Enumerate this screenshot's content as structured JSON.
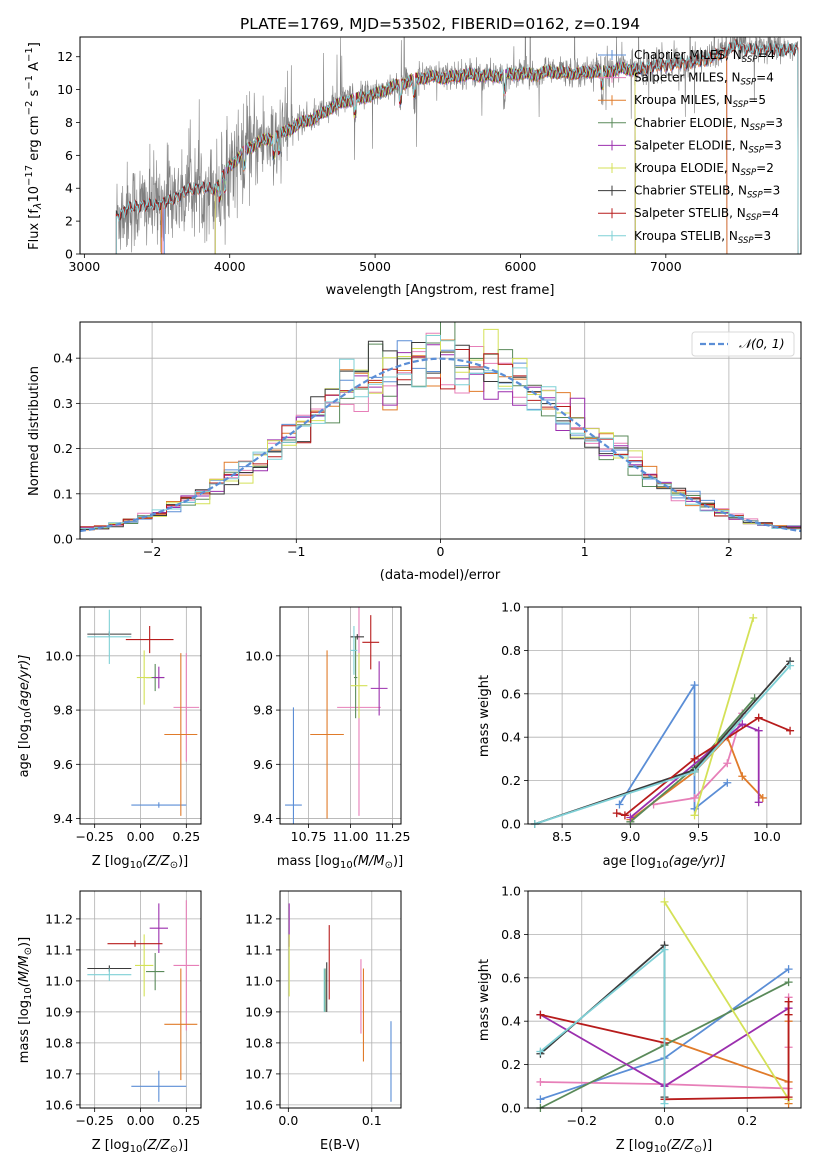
{
  "figure_title": "PLATE=1769, MJD=53502, FIBERID=0162, z=0.194",
  "colors": {
    "chabrier_miles": "#5b8ed6",
    "salpeter_miles": "#e77fb8",
    "kroupa_miles": "#e07b2a",
    "chabrier_elodie": "#5a8a5a",
    "salpeter_elodie": "#9b2fae",
    "kroupa_elodie": "#d4e157",
    "chabrier_stelib": "#3a3a3a",
    "salpeter_stelib": "#b71c1c",
    "kroupa_stelib": "#7fd0d6",
    "observed": "#808080",
    "gaussian": "#5b8ed6"
  },
  "chart_data": [
    {
      "id": "spectrum",
      "type": "line",
      "title": "PLATE=1769, MJD=53502, FIBERID=0162, z=0.194",
      "xlabel": "wavelength [Angstrom, rest frame]",
      "ylabel_parts": {
        "a": "Flux [f",
        "b": "λ",
        "c": "10",
        "d": "−17",
        "e": " erg cm",
        "f": "−2",
        "g": " s",
        "h": "−1",
        "i": " A",
        "j": "−1",
        "k": "]"
      },
      "xlim": [
        2970,
        7930
      ],
      "ylim": [
        0,
        13.2
      ],
      "xticks": [
        3000,
        4000,
        5000,
        6000,
        7000
      ],
      "yticks": [
        0,
        2,
        4,
        6,
        8,
        10,
        12
      ],
      "legend_position": "right",
      "continuum": {
        "x": [
          3220,
          3300,
          3400,
          3500,
          3600,
          3700,
          3800,
          3900,
          4000,
          4100,
          4200,
          4300,
          4400,
          4500,
          4600,
          4700,
          4800,
          4900,
          5000,
          5100,
          5200,
          5300,
          5400,
          5500,
          5600,
          5700,
          5800,
          5900,
          6000,
          6100,
          6200,
          6300,
          6400,
          6500,
          6600,
          6700,
          6800,
          6900,
          7000,
          7100,
          7200,
          7300,
          7400,
          7500,
          7550
        ],
        "y": [
          2.3,
          2.8,
          3.0,
          3.0,
          3.3,
          3.9,
          4.1,
          4.0,
          5.4,
          6.3,
          6.9,
          7.1,
          7.6,
          8.1,
          8.4,
          9.0,
          9.4,
          9.6,
          9.8,
          10.2,
          10.5,
          10.8,
          10.9,
          10.8,
          11.0,
          11.0,
          10.9,
          11.0,
          11.1,
          11.0,
          11.2,
          11.1,
          11.1,
          11.2,
          11.2,
          11.4,
          11.3,
          11.5,
          11.6,
          11.7,
          11.8,
          12.0,
          12.4,
          12.8,
          12.5
        ]
      },
      "series": [
        {
          "name": "Chabrier MILES, N",
          "n_ssp": "=4",
          "color_key": "chabrier_miles",
          "x_start": 3550,
          "x_end": 7420
        },
        {
          "name": "Salpeter MILES, N",
          "n_ssp": "=4",
          "color_key": "salpeter_miles",
          "x_start": 3540,
          "x_end": 7420
        },
        {
          "name": "Kroupa MILES, N",
          "n_ssp": "=5",
          "color_key": "kroupa_miles",
          "x_start": 3530,
          "x_end": 7420
        },
        {
          "name": "Chabrier ELODIE, N",
          "n_ssp": "=3",
          "color_key": "chabrier_elodie",
          "x_start": 3900,
          "x_end": 6790
        },
        {
          "name": "Salpeter ELODIE, N",
          "n_ssp": "=3",
          "color_key": "salpeter_elodie",
          "x_start": 3900,
          "x_end": 6790
        },
        {
          "name": "Kroupa ELODIE, N",
          "n_ssp": "=2",
          "color_key": "kroupa_elodie",
          "x_start": 3900,
          "x_end": 6790
        },
        {
          "name": "Chabrier STELIB, N",
          "n_ssp": "=3",
          "color_key": "chabrier_stelib",
          "x_start": 3220,
          "x_end": 7910
        },
        {
          "name": "Salpeter STELIB, N",
          "n_ssp": "=4",
          "color_key": "salpeter_stelib",
          "x_start": 3220,
          "x_end": 7910
        },
        {
          "name": "Kroupa STELIB, N",
          "n_ssp": "=3",
          "color_key": "kroupa_stelib",
          "x_start": 3220,
          "x_end": 7910
        }
      ],
      "ssp_sub": "SSP"
    },
    {
      "id": "residuals",
      "type": "histogram",
      "xlabel": "(data-model)/error",
      "ylabel": "Normed distribution",
      "xlim": [
        -2.5,
        2.5
      ],
      "ylim": [
        0,
        0.48
      ],
      "xticks": [
        -2,
        -1,
        0,
        1,
        2
      ],
      "yticks": [
        0.0,
        0.1,
        0.2,
        0.3,
        0.4
      ],
      "grid": true,
      "bin_width": 0.1,
      "legend_label": "𝒩(0, 1)",
      "legend_position": "top-right"
    },
    {
      "id": "z_age",
      "type": "errorbar",
      "xlabel_parts": {
        "a": "Z [log",
        "b": "10",
        "c": "(Z/Z",
        "d": "⊙",
        "e": ")]"
      },
      "ylabel_parts": {
        "a": "age  [log",
        "b": "10",
        "c": "(age/yr)]"
      },
      "xlim": [
        -0.33,
        0.33
      ],
      "ylim": [
        9.38,
        10.18
      ],
      "xticks": [
        -0.25,
        0.0,
        0.25
      ],
      "yticks": [
        9.4,
        9.6,
        9.8,
        10.0
      ],
      "grid": true,
      "points": [
        {
          "color_key": "chabrier_miles",
          "x": 0.1,
          "xerr": 0.15,
          "y": 9.45,
          "yerr": 0.01
        },
        {
          "color_key": "salpeter_miles",
          "x": 0.25,
          "xerr": 0.07,
          "y": 9.81,
          "yerr": 0.2
        },
        {
          "color_key": "kroupa_miles",
          "x": 0.22,
          "xerr": 0.09,
          "y": 9.71,
          "yerr": 0.3
        },
        {
          "color_key": "chabrier_elodie",
          "x": 0.08,
          "xerr": 0.05,
          "y": 9.92,
          "yerr": 0.05
        },
        {
          "color_key": "salpeter_elodie",
          "x": 0.1,
          "xerr": 0.03,
          "y": 9.92,
          "yerr": 0.04
        },
        {
          "color_key": "kroupa_elodie",
          "x": 0.02,
          "xerr": 0.04,
          "y": 9.92,
          "yerr": 0.1
        },
        {
          "color_key": "chabrier_stelib",
          "x": -0.17,
          "xerr": 0.12,
          "y": 10.08,
          "yerr": 0.01
        },
        {
          "color_key": "salpeter_stelib",
          "x": 0.05,
          "xerr": 0.13,
          "y": 10.06,
          "yerr": 0.05
        },
        {
          "color_key": "kroupa_stelib",
          "x": -0.17,
          "xerr": 0.12,
          "y": 10.07,
          "yerr": 0.1
        }
      ]
    },
    {
      "id": "mass_age",
      "type": "errorbar",
      "xlabel_parts": {
        "a": "mass [log",
        "b": "10",
        "c": "(M/M",
        "d": "⊙",
        "e": ")]"
      },
      "xlim": [
        10.58,
        11.3
      ],
      "ylim": [
        9.38,
        10.18
      ],
      "xticks": [
        10.75,
        11.0,
        11.25
      ],
      "yticks": [
        9.4,
        9.6,
        9.8,
        10.0
      ],
      "grid": true,
      "points": [
        {
          "color_key": "chabrier_miles",
          "x": 10.66,
          "xerr": 0.05,
          "y": 9.45,
          "yerr": 0.36
        },
        {
          "color_key": "salpeter_miles",
          "x": 11.05,
          "xerr": 0.13,
          "y": 9.81,
          "yerr": 0.4
        },
        {
          "color_key": "kroupa_miles",
          "x": 10.86,
          "xerr": 0.1,
          "y": 9.71,
          "yerr": 0.31
        },
        {
          "color_key": "chabrier_elodie",
          "x": 11.03,
          "xerr": 0.01,
          "y": 9.92,
          "yerr": 0.15
        },
        {
          "color_key": "salpeter_elodie",
          "x": 11.17,
          "xerr": 0.05,
          "y": 9.88,
          "yerr": 0.1
        },
        {
          "color_key": "kroupa_elodie",
          "x": 11.05,
          "xerr": 0.05,
          "y": 9.89,
          "yerr": 0.12
        },
        {
          "color_key": "chabrier_stelib",
          "x": 11.04,
          "xerr": 0.04,
          "y": 10.07,
          "yerr": 0.01
        },
        {
          "color_key": "salpeter_stelib",
          "x": 11.12,
          "xerr": 0.05,
          "y": 10.05,
          "yerr": 0.1
        },
        {
          "color_key": "kroupa_stelib",
          "x": 11.02,
          "xerr": 0.02,
          "y": 10.02,
          "yerr": 0.09
        }
      ]
    },
    {
      "id": "age_weight",
      "type": "line",
      "xlabel_parts": {
        "a": "age  [log",
        "b": "10",
        "c": "(age/yr)]"
      },
      "ylabel": "mass weight",
      "xlim": [
        8.25,
        10.25
      ],
      "ylim": [
        0,
        1.0
      ],
      "xticks": [
        8.5,
        9.0,
        9.5,
        10.0
      ],
      "yticks": [
        0.0,
        0.2,
        0.4,
        0.6,
        0.8,
        1.0
      ],
      "grid": true,
      "series": [
        {
          "color_key": "chabrier_miles",
          "x": [
            8.92,
            9.47,
            9.47,
            9.71
          ],
          "y": [
            0.09,
            0.64,
            0.07,
            0.19
          ]
        },
        {
          "color_key": "salpeter_miles",
          "x": [
            9.17,
            9.47,
            9.71,
            9.82
          ],
          "y": [
            0.09,
            0.12,
            0.28,
            0.51
          ]
        },
        {
          "color_key": "kroupa_miles",
          "x": [
            9.0,
            9.47,
            9.71,
            9.82,
            9.97
          ],
          "y": [
            0.02,
            0.24,
            0.4,
            0.22,
            0.12
          ]
        },
        {
          "color_key": "chabrier_elodie",
          "x": [
            9.0,
            9.47,
            9.91
          ],
          "y": [
            0.01,
            0.26,
            0.58
          ]
        },
        {
          "color_key": "salpeter_elodie",
          "x": [
            9.0,
            9.82,
            9.94,
            9.94
          ],
          "y": [
            0.03,
            0.46,
            0.43,
            0.1
          ]
        },
        {
          "color_key": "kroupa_elodie",
          "x": [
            9.47,
            9.9
          ],
          "y": [
            0.04,
            0.95
          ]
        },
        {
          "color_key": "chabrier_stelib",
          "x": [
            8.3,
            9.47,
            10.17
          ],
          "y": [
            0.0,
            0.25,
            0.75
          ]
        },
        {
          "color_key": "salpeter_stelib",
          "x": [
            8.9,
            8.96,
            9.47,
            9.94,
            10.17
          ],
          "y": [
            0.05,
            0.04,
            0.3,
            0.49,
            0.43
          ]
        },
        {
          "color_key": "kroupa_stelib",
          "x": [
            8.3,
            9.47,
            10.17
          ],
          "y": [
            0.0,
            0.24,
            0.73
          ]
        }
      ]
    },
    {
      "id": "z_mass",
      "type": "errorbar",
      "xlabel_parts": {
        "a": "Z [log",
        "b": "10",
        "c": "(Z/Z",
        "d": "⊙",
        "e": ")]"
      },
      "ylabel_parts": {
        "a": "mass [log",
        "b": "10",
        "c": "(M/M",
        "d": "⊙",
        "e": ")]"
      },
      "xlim": [
        -0.33,
        0.33
      ],
      "ylim": [
        10.59,
        11.29
      ],
      "xticks": [
        -0.25,
        0.0,
        0.25
      ],
      "yticks": [
        10.6,
        10.7,
        10.8,
        10.9,
        11.0,
        11.1,
        11.2
      ],
      "grid": true,
      "points": [
        {
          "color_key": "chabrier_miles",
          "x": 0.1,
          "xerr": 0.15,
          "y": 10.66,
          "yerr": 0.05
        },
        {
          "color_key": "salpeter_miles",
          "x": 0.25,
          "xerr": 0.07,
          "y": 11.05,
          "yerr": 0.21
        },
        {
          "color_key": "kroupa_miles",
          "x": 0.22,
          "xerr": 0.09,
          "y": 10.86,
          "yerr": 0.18
        },
        {
          "color_key": "chabrier_elodie",
          "x": 0.08,
          "xerr": 0.05,
          "y": 11.03,
          "yerr": 0.06
        },
        {
          "color_key": "salpeter_elodie",
          "x": 0.1,
          "xerr": 0.05,
          "y": 11.17,
          "yerr": 0.08
        },
        {
          "color_key": "kroupa_elodie",
          "x": 0.02,
          "xerr": 0.05,
          "y": 11.05,
          "yerr": 0.1
        },
        {
          "color_key": "chabrier_stelib",
          "x": -0.17,
          "xerr": 0.12,
          "y": 11.04,
          "yerr": 0.01
        },
        {
          "color_key": "salpeter_stelib",
          "x": -0.03,
          "xerr": 0.15,
          "y": 11.12,
          "yerr": 0.01
        },
        {
          "color_key": "kroupa_stelib",
          "x": -0.17,
          "xerr": 0.12,
          "y": 11.02,
          "yerr": 0.02
        }
      ]
    },
    {
      "id": "ebv_mass",
      "type": "errorbar",
      "xlabel": "E(B-V)",
      "xlim": [
        -0.01,
        0.135
      ],
      "ylim": [
        10.59,
        11.29
      ],
      "xticks": [
        0.0,
        0.1
      ],
      "yticks": [
        10.6,
        10.7,
        10.8,
        10.9,
        11.0,
        11.1,
        11.2
      ],
      "grid": true,
      "points": [
        {
          "color_key": "chabrier_miles",
          "x": 0.123,
          "y": 10.74,
          "yerr": 0.13
        },
        {
          "color_key": "salpeter_miles",
          "x": 0.087,
          "y": 10.95,
          "yerr": 0.12
        },
        {
          "color_key": "kroupa_miles",
          "x": 0.09,
          "y": 10.89,
          "yerr": 0.15
        },
        {
          "color_key": "chabrier_elodie",
          "x": 0.044,
          "y": 10.97,
          "yerr": 0.07
        },
        {
          "color_key": "salpeter_elodie",
          "x": 0.001,
          "y": 11.18,
          "yerr": 0.07
        },
        {
          "color_key": "kroupa_elodie",
          "x": 0.001,
          "y": 11.05,
          "yerr": 0.1
        },
        {
          "color_key": "chabrier_stelib",
          "x": 0.046,
          "y": 10.98,
          "yerr": 0.08
        },
        {
          "color_key": "salpeter_stelib",
          "x": 0.049,
          "y": 11.06,
          "yerr": 0.12
        },
        {
          "color_key": "kroupa_stelib",
          "x": 0.043,
          "y": 10.97,
          "yerr": 0.07
        }
      ]
    },
    {
      "id": "z_weight",
      "type": "line",
      "xlabel_parts": {
        "a": "Z [log",
        "b": "10",
        "c": "(Z/Z",
        "d": "⊙",
        "e": ")]"
      },
      "ylabel": "mass weight",
      "xlim": [
        -0.33,
        0.33
      ],
      "ylim": [
        0,
        1.0
      ],
      "xticks": [
        -0.2,
        0.0,
        0.2
      ],
      "yticks": [
        0.0,
        0.2,
        0.4,
        0.6,
        0.8,
        1.0
      ],
      "grid": true,
      "series": [
        {
          "color_key": "chabrier_miles",
          "x": [
            -0.3,
            0.0,
            0.3
          ],
          "y": [
            0.04,
            0.23,
            0.64
          ]
        },
        {
          "color_key": "salpeter_miles",
          "x": [
            -0.3,
            0.0,
            0.3,
            0.3,
            0.3
          ],
          "y": [
            0.12,
            0.11,
            0.09,
            0.28,
            0.51
          ]
        },
        {
          "color_key": "kroupa_miles",
          "x": [
            0.0,
            0.3,
            0.3,
            0.3
          ],
          "y": [
            0.32,
            0.12,
            0.02,
            0.4
          ]
        },
        {
          "color_key": "chabrier_elodie",
          "x": [
            -0.3,
            0.0,
            0.3
          ],
          "y": [
            0.0,
            0.29,
            0.58
          ]
        },
        {
          "color_key": "salpeter_elodie",
          "x": [
            -0.3,
            0.0,
            0.3
          ],
          "y": [
            0.43,
            0.1,
            0.46
          ]
        },
        {
          "color_key": "kroupa_elodie",
          "x": [
            0.0,
            0.3
          ],
          "y": [
            0.95,
            0.04
          ]
        },
        {
          "color_key": "chabrier_stelib",
          "x": [
            -0.3,
            0.0,
            0.0
          ],
          "y": [
            0.25,
            0.75,
            0.05
          ]
        },
        {
          "color_key": "salpeter_stelib",
          "x": [
            -0.3,
            0.0,
            0.0,
            0.3,
            0.3,
            0.3
          ],
          "y": [
            0.43,
            0.3,
            0.04,
            0.05,
            0.49,
            0.43
          ]
        },
        {
          "color_key": "kroupa_stelib",
          "x": [
            -0.3,
            0.0,
            0.0
          ],
          "y": [
            0.26,
            0.73,
            0.02
          ]
        }
      ]
    }
  ]
}
